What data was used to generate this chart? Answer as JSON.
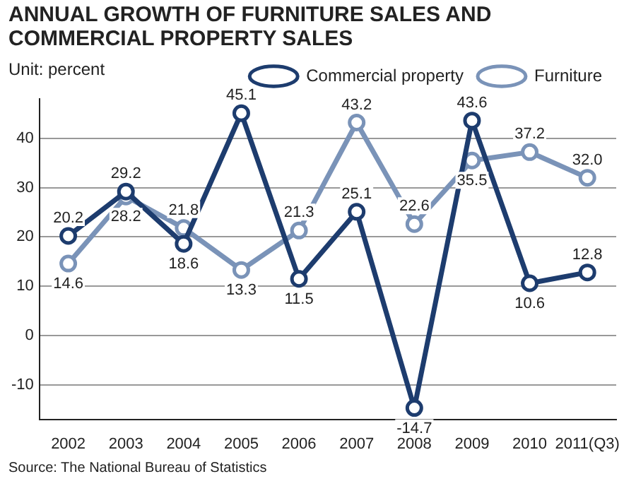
{
  "chart_data": {
    "type": "line",
    "title": "ANNUAL GROWTH OF FURNITURE SALES AND COMMERCIAL PROPERTY SALES",
    "subtitle": "Unit: percent",
    "categories": [
      "2002",
      "2003",
      "2004",
      "2005",
      "2006",
      "2007",
      "2008",
      "2009",
      "2010",
      "2011(Q3)"
    ],
    "series": [
      {
        "name": "Commercial property",
        "color": "#1d3c6e",
        "values": [
          20.2,
          29.2,
          18.6,
          45.1,
          11.5,
          25.1,
          -14.7,
          43.6,
          10.6,
          12.8
        ],
        "value_labels": [
          "20.2",
          "29.2",
          "18.6",
          "45.1",
          "11.5",
          "25.1",
          "-14.7",
          "43.6",
          "10.6",
          "12.8"
        ]
      },
      {
        "name": "Furniture",
        "color": "#7a93b8",
        "values": [
          14.6,
          28.2,
          21.8,
          13.3,
          21.3,
          43.2,
          22.6,
          35.5,
          37.2,
          32.0
        ],
        "value_labels": [
          "14.6",
          "28.2",
          "21.8",
          "13.3",
          "21.3",
          "43.2",
          "22.6",
          "35.5",
          "37.2",
          "32.0"
        ]
      }
    ],
    "ylim": [
      -17,
      48
    ],
    "yticks": [
      -10,
      0,
      10,
      20,
      30,
      40
    ],
    "grid": "y",
    "legend": "top",
    "marker": "circle",
    "line_style": "solid",
    "annotations": [
      "Source: The National Bureau of Statistics"
    ]
  }
}
